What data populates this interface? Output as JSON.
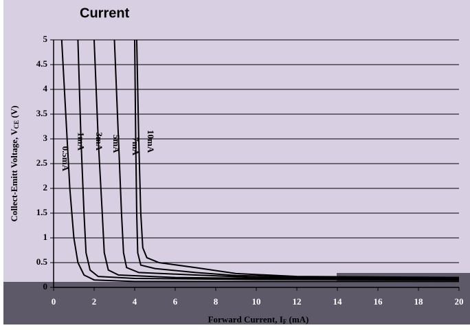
{
  "chart_data": {
    "type": "line",
    "title": "Current",
    "xlabel": {
      "text": "Forward Current, I",
      "sub": "F",
      "unit": " (mA)"
    },
    "ylabel": {
      "text": "Collect-Emitt Voltage, V",
      "sub": "CE",
      "unit": " (V)"
    },
    "xlim": [
      0,
      20
    ],
    "xticks": [
      0,
      2,
      4,
      6,
      8,
      10,
      12,
      14,
      16,
      18,
      20
    ],
    "ylim": [
      0,
      5
    ],
    "yticks": [
      0,
      0.5,
      1,
      1.5,
      2,
      2.5,
      3,
      3.5,
      4,
      4.5,
      5
    ],
    "grid": true,
    "series": [
      {
        "name": "0.5mA",
        "color": "#000000",
        "x": [
          0.4,
          0.6,
          0.8,
          1.0,
          1.2,
          1.5,
          2,
          4,
          10,
          20
        ],
        "values": [
          5,
          3.5,
          2,
          1,
          0.5,
          0.25,
          0.15,
          0.12,
          0.12,
          0.12
        ]
      },
      {
        "name": "1mA",
        "color": "#000000",
        "x": [
          1.2,
          1.35,
          1.5,
          1.6,
          1.8,
          2.2,
          4,
          10,
          20
        ],
        "values": [
          5,
          3,
          1.5,
          0.7,
          0.35,
          0.22,
          0.18,
          0.16,
          0.15
        ]
      },
      {
        "name": "3mA",
        "color": "#000000",
        "x": [
          2.0,
          2.2,
          2.4,
          2.5,
          2.7,
          3.2,
          6,
          10,
          20
        ],
        "values": [
          5,
          3,
          1.5,
          0.7,
          0.35,
          0.25,
          0.2,
          0.18,
          0.17
        ]
      },
      {
        "name": "5mA",
        "color": "#000000",
        "x": [
          3.0,
          3.2,
          3.35,
          3.45,
          3.6,
          4.2,
          7,
          10,
          20
        ],
        "values": [
          5,
          3,
          1.5,
          0.7,
          0.4,
          0.3,
          0.25,
          0.2,
          0.2
        ]
      },
      {
        "name": "7mA",
        "color": "#000000",
        "x": [
          4.0,
          4.05,
          4.1,
          4.15,
          4.3,
          5,
          7,
          9,
          12,
          20
        ],
        "values": [
          5,
          3,
          1.5,
          0.7,
          0.45,
          0.38,
          0.3,
          0.24,
          0.21,
          0.19
        ]
      },
      {
        "name": "10mA",
        "color": "#000000",
        "x": [
          4.1,
          4.2,
          4.3,
          4.4,
          4.6,
          5.2,
          7,
          9,
          12,
          20
        ],
        "values": [
          5,
          3,
          1.5,
          0.8,
          0.6,
          0.5,
          0.4,
          0.28,
          0.22,
          0.2
        ]
      }
    ]
  }
}
